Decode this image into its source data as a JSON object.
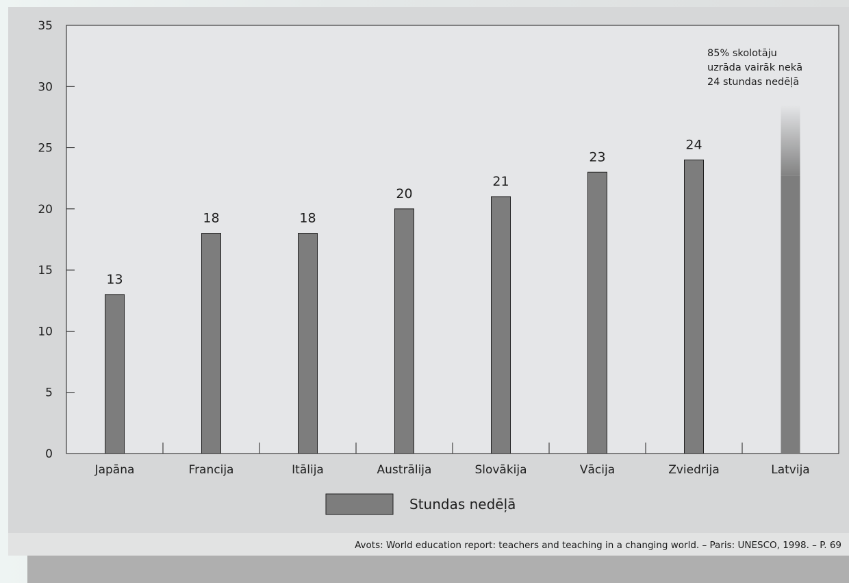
{
  "chart_data": {
    "type": "bar",
    "title": "",
    "xlabel": "",
    "ylabel": "",
    "categories": [
      "Japāna",
      "Francija",
      "Itālija",
      "Austrālija",
      "Slovākija",
      "Vācija",
      "Zviedrija",
      "Latvija"
    ],
    "series": [
      {
        "name": "Stundas nedēļā",
        "values": [
          13,
          18,
          18,
          20,
          21,
          23,
          24,
          22.7
        ],
        "data_labels": [
          "13",
          "18",
          "18",
          "20",
          "21",
          "23",
          "24",
          ""
        ]
      }
    ],
    "latvija_fade_top": 28.5,
    "ylim": [
      0,
      35
    ],
    "yticks": [
      0,
      5,
      10,
      15,
      20,
      25,
      30,
      35
    ],
    "grid": false,
    "legend_position": "bottom-center",
    "annotation": [
      "85% skolotāju",
      "uzrāda vairāk nekā",
      "24 stundas nedēļā"
    ],
    "bar_color": "#7d7d7d",
    "plot_bg": "#e5e6e8"
  },
  "source": "Avots: World education report: teachers and teaching in a changing world. – Paris: UNESCO, 1998. – P. 69"
}
